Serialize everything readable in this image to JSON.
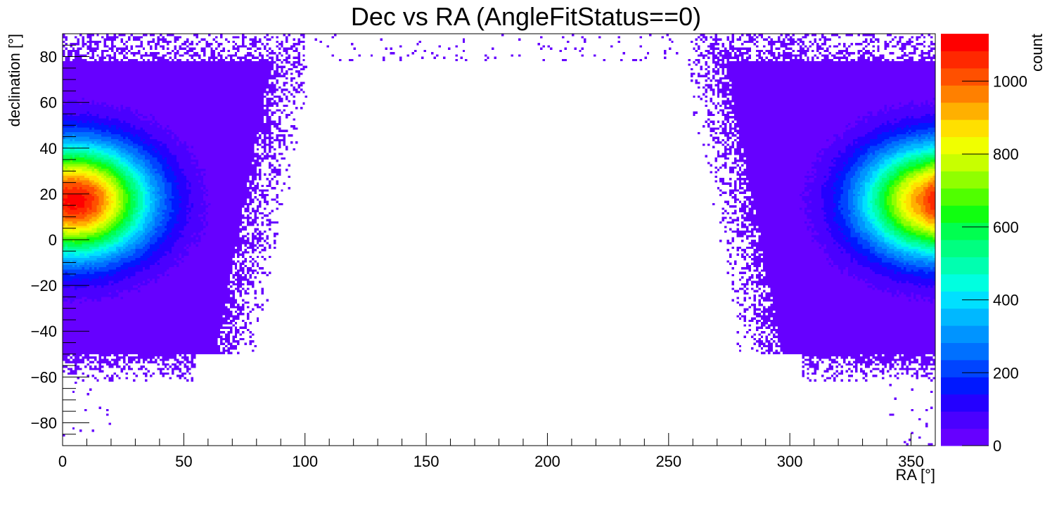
{
  "chart_data": {
    "type": "heatmap",
    "title": "Dec vs RA (AngleFitStatus==0)",
    "xlabel": "RA [°]",
    "ylabel": "declination [°]",
    "zlabel": "count",
    "xlim": [
      0,
      360
    ],
    "ylim": [
      -90,
      90
    ],
    "zlim": [
      0,
      1130
    ],
    "x_ticks": [
      0,
      50,
      100,
      150,
      200,
      250,
      300,
      350
    ],
    "y_ticks": [
      -80,
      -60,
      -40,
      -20,
      0,
      20,
      40,
      60,
      80
    ],
    "z_ticks": [
      0,
      200,
      400,
      600,
      800,
      1000
    ],
    "x_tick_labels": [
      "0",
      "50",
      "100",
      "150",
      "200",
      "250",
      "300",
      "350"
    ],
    "y_tick_labels": [
      "−80",
      "−60",
      "−40",
      "−20",
      "0",
      "20",
      "40",
      "60",
      "80"
    ],
    "z_tick_labels": [
      "0",
      "200",
      "400",
      "600",
      "800",
      "1000"
    ],
    "bins": {
      "x": 360,
      "y": 180
    },
    "peaks": [
      {
        "ra": 5,
        "dec": 17,
        "count": 1100
      },
      {
        "ra": 360,
        "dec": 17,
        "count": 1000
      }
    ],
    "palette": [
      "#6600ff",
      "#4a00ff",
      "#2400ff",
      "#0018ff",
      "#0044ff",
      "#0070ff",
      "#0094ff",
      "#00b8ff",
      "#00e0ff",
      "#00ffe0",
      "#00ffb0",
      "#00ff80",
      "#00ff50",
      "#10ff10",
      "#50ff00",
      "#90ff00",
      "#c8ff00",
      "#f0ff00",
      "#ffe000",
      "#ffb000",
      "#ff8000",
      "#ff5000",
      "#ff2800",
      "#ff0000"
    ],
    "grid": false,
    "legend": "colorbar-right"
  }
}
